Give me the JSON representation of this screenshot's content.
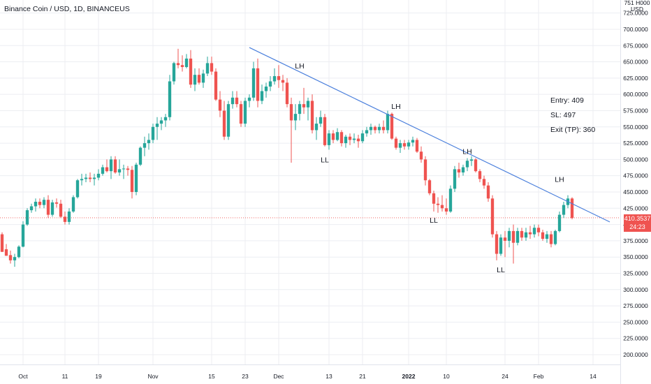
{
  "title": "Binance Coin / USD, 1D, BINANCEUS",
  "price_label": "410.3537",
  "countdown": "24:23",
  "axis_top_clipped": "751 H000",
  "axis_unit": "USD",
  "colors": {
    "up": "#26a69a",
    "down": "#ef5350",
    "trendline": "#4a7fdc",
    "grid": "#eceef2",
    "text": "#131722",
    "price_line": "#ef5350"
  },
  "annotations": [
    {
      "text": "LH",
      "date": "2021-12-06",
      "price": 644
    },
    {
      "text": "LL",
      "date": "2021-12-12",
      "price": 500
    },
    {
      "text": "LH",
      "date": "2021-12-29",
      "price": 582
    },
    {
      "text": "LL",
      "date": "2022-01-07",
      "price": 407
    },
    {
      "text": "LH",
      "date": "2022-01-15",
      "price": 513
    },
    {
      "text": "LL",
      "date": "2022-01-23",
      "price": 331
    },
    {
      "text": "LH",
      "date": "2022-02-06",
      "price": 470
    }
  ],
  "trade_notes": [
    "Entry: 409",
    "SL: 497",
    "Exit (TP): 360"
  ],
  "chart_data": {
    "type": "candlestick",
    "title": "Binance Coin / USD, 1D, BINANCEUS",
    "x_ticks": [
      {
        "label": "Oct",
        "date": "2021-10-01"
      },
      {
        "label": "11",
        "date": "2021-10-11"
      },
      {
        "label": "19",
        "date": "2021-10-19"
      },
      {
        "label": "Nov",
        "date": "2021-11-01"
      },
      {
        "label": "15",
        "date": "2021-11-15"
      },
      {
        "label": "23",
        "date": "2021-11-23"
      },
      {
        "label": "Dec",
        "date": "2021-12-01"
      },
      {
        "label": "13",
        "date": "2021-12-13"
      },
      {
        "label": "21",
        "date": "2021-12-21"
      },
      {
        "label": "2022",
        "date": "2022-01-01"
      },
      {
        "label": "10",
        "date": "2022-01-10"
      },
      {
        "label": "24",
        "date": "2022-01-24"
      },
      {
        "label": "Feb",
        "date": "2022-02-01"
      },
      {
        "label": "14",
        "date": "2022-02-14"
      }
    ],
    "y_ticks": [
      "725.0000",
      "700.0000",
      "675.0000",
      "650.0000",
      "625.0000",
      "600.0000",
      "575.0000",
      "550.0000",
      "525.0000",
      "500.0000",
      "475.0000",
      "450.0000",
      "425.0000",
      "400.0000",
      "375.0000",
      "350.0000",
      "325.0000",
      "300.0000",
      "275.0000",
      "250.0000",
      "225.0000",
      "200.0000"
    ],
    "ylim": [
      185,
      745
    ],
    "xlim": [
      "2021-09-26",
      "2022-02-20"
    ],
    "grid": true,
    "current_price": 410.35,
    "trendline": {
      "start": {
        "date": "2021-11-24",
        "price": 672
      },
      "end": {
        "date": "2022-02-18",
        "price": 404
      }
    },
    "candles": [
      [
        "2021-09-26",
        385,
        388,
        358,
        358
      ],
      [
        "2021-09-27",
        362,
        370,
        352,
        352
      ],
      [
        "2021-09-28",
        353,
        360,
        340,
        345
      ],
      [
        "2021-09-29",
        345,
        355,
        335,
        350
      ],
      [
        "2021-09-30",
        350,
        368,
        348,
        366
      ],
      [
        "2021-10-01",
        366,
        405,
        365,
        400
      ],
      [
        "2021-10-02",
        400,
        425,
        398,
        422
      ],
      [
        "2021-10-03",
        422,
        432,
        418,
        428
      ],
      [
        "2021-10-04",
        428,
        440,
        420,
        435
      ],
      [
        "2021-10-05",
        435,
        440,
        425,
        430
      ],
      [
        "2021-10-06",
        430,
        442,
        425,
        438
      ],
      [
        "2021-10-07",
        438,
        445,
        410,
        415
      ],
      [
        "2021-10-08",
        415,
        438,
        412,
        434
      ],
      [
        "2021-10-09",
        434,
        440,
        426,
        432
      ],
      [
        "2021-10-10",
        432,
        438,
        410,
        412
      ],
      [
        "2021-10-11",
        412,
        420,
        400,
        404
      ],
      [
        "2021-10-12",
        404,
        425,
        400,
        420
      ],
      [
        "2021-10-13",
        420,
        445,
        418,
        442
      ],
      [
        "2021-10-14",
        442,
        470,
        440,
        468
      ],
      [
        "2021-10-15",
        468,
        478,
        460,
        470
      ],
      [
        "2021-10-16",
        470,
        478,
        465,
        472
      ],
      [
        "2021-10-17",
        472,
        480,
        465,
        470
      ],
      [
        "2021-10-18",
        470,
        478,
        460,
        472
      ],
      [
        "2021-10-19",
        472,
        485,
        468,
        478
      ],
      [
        "2021-10-20",
        478,
        492,
        475,
        488
      ],
      [
        "2021-10-21",
        488,
        500,
        480,
        482
      ],
      [
        "2021-10-22",
        482,
        505,
        470,
        500
      ],
      [
        "2021-10-23",
        500,
        505,
        478,
        480
      ],
      [
        "2021-10-24",
        480,
        500,
        475,
        485
      ],
      [
        "2021-10-25",
        485,
        492,
        470,
        486
      ],
      [
        "2021-10-26",
        486,
        490,
        475,
        484
      ],
      [
        "2021-10-27",
        484,
        490,
        440,
        450
      ],
      [
        "2021-10-28",
        450,
        495,
        445,
        492
      ],
      [
        "2021-10-29",
        492,
        520,
        490,
        518
      ],
      [
        "2021-10-30",
        518,
        535,
        505,
        525
      ],
      [
        "2021-10-31",
        525,
        540,
        515,
        530
      ],
      [
        "2021-11-01",
        530,
        555,
        525,
        550
      ],
      [
        "2021-11-02",
        550,
        565,
        530,
        555
      ],
      [
        "2021-11-03",
        555,
        565,
        545,
        560
      ],
      [
        "2021-11-04",
        560,
        570,
        550,
        565
      ],
      [
        "2021-11-05",
        565,
        630,
        560,
        620
      ],
      [
        "2021-11-06",
        620,
        650,
        615,
        648
      ],
      [
        "2021-11-07",
        648,
        670,
        640,
        645
      ],
      [
        "2021-11-08",
        645,
        660,
        635,
        642
      ],
      [
        "2021-11-09",
        642,
        662,
        640,
        655
      ],
      [
        "2021-11-10",
        655,
        668,
        610,
        615
      ],
      [
        "2021-11-11",
        615,
        640,
        605,
        630
      ],
      [
        "2021-11-12",
        630,
        640,
        615,
        618
      ],
      [
        "2021-11-13",
        618,
        638,
        610,
        632
      ],
      [
        "2021-11-14",
        632,
        658,
        628,
        648
      ],
      [
        "2021-11-15",
        648,
        658,
        630,
        635
      ],
      [
        "2021-11-16",
        635,
        640,
        590,
        592
      ],
      [
        "2021-11-17",
        592,
        605,
        565,
        575
      ],
      [
        "2021-11-18",
        575,
        590,
        530,
        535
      ],
      [
        "2021-11-19",
        535,
        590,
        530,
        585
      ],
      [
        "2021-11-20",
        585,
        605,
        578,
        595
      ],
      [
        "2021-11-21",
        595,
        605,
        580,
        585
      ],
      [
        "2021-11-22",
        585,
        590,
        550,
        555
      ],
      [
        "2021-11-23",
        555,
        595,
        550,
        590
      ],
      [
        "2021-11-24",
        590,
        600,
        580,
        595
      ],
      [
        "2021-11-25",
        595,
        650,
        590,
        640
      ],
      [
        "2021-11-26",
        640,
        655,
        580,
        590
      ],
      [
        "2021-11-27",
        590,
        615,
        585,
        605
      ],
      [
        "2021-11-28",
        605,
        618,
        595,
        612
      ],
      [
        "2021-11-29",
        612,
        628,
        605,
        620
      ],
      [
        "2021-11-30",
        620,
        640,
        615,
        628
      ],
      [
        "2021-12-01",
        628,
        645,
        610,
        622
      ],
      [
        "2021-12-02",
        622,
        630,
        605,
        618
      ],
      [
        "2021-12-03",
        618,
        625,
        580,
        585
      ],
      [
        "2021-12-04",
        585,
        595,
        495,
        560
      ],
      [
        "2021-12-05",
        560,
        585,
        545,
        570
      ],
      [
        "2021-12-06",
        570,
        590,
        560,
        585
      ],
      [
        "2021-12-07",
        585,
        610,
        570,
        580
      ],
      [
        "2021-12-08",
        580,
        595,
        560,
        590
      ],
      [
        "2021-12-09",
        590,
        600,
        540,
        545
      ],
      [
        "2021-12-10",
        545,
        565,
        530,
        555
      ],
      [
        "2021-12-11",
        555,
        575,
        550,
        565
      ],
      [
        "2021-12-12",
        565,
        570,
        520,
        522
      ],
      [
        "2021-12-13",
        522,
        545,
        515,
        540
      ],
      [
        "2021-12-14",
        540,
        545,
        525,
        530
      ],
      [
        "2021-12-15",
        530,
        548,
        528,
        542
      ],
      [
        "2021-12-16",
        542,
        545,
        520,
        525
      ],
      [
        "2021-12-17",
        525,
        538,
        518,
        535
      ],
      [
        "2021-12-18",
        535,
        540,
        522,
        530
      ],
      [
        "2021-12-19",
        530,
        540,
        525,
        532
      ],
      [
        "2021-12-20",
        532,
        538,
        518,
        528
      ],
      [
        "2021-12-21",
        528,
        545,
        525,
        540
      ],
      [
        "2021-12-22",
        540,
        550,
        535,
        545
      ],
      [
        "2021-12-23",
        545,
        555,
        538,
        550
      ],
      [
        "2021-12-24",
        550,
        552,
        540,
        545
      ],
      [
        "2021-12-25",
        545,
        555,
        540,
        550
      ],
      [
        "2021-12-26",
        550,
        560,
        540,
        545
      ],
      [
        "2021-12-27",
        545,
        575,
        540,
        570
      ],
      [
        "2021-12-28",
        570,
        572,
        530,
        532
      ],
      [
        "2021-12-29",
        532,
        535,
        515,
        518
      ],
      [
        "2021-12-30",
        518,
        530,
        510,
        525
      ],
      [
        "2021-12-31",
        525,
        530,
        515,
        520
      ],
      [
        "2022-01-01",
        520,
        530,
        515,
        526
      ],
      [
        "2022-01-02",
        526,
        535,
        520,
        530
      ],
      [
        "2022-01-03",
        530,
        533,
        510,
        512
      ],
      [
        "2022-01-04",
        512,
        520,
        495,
        500
      ],
      [
        "2022-01-05",
        500,
        505,
        460,
        468
      ],
      [
        "2022-01-06",
        468,
        470,
        445,
        448
      ],
      [
        "2022-01-07",
        448,
        452,
        420,
        432
      ],
      [
        "2022-01-08",
        432,
        442,
        418,
        430
      ],
      [
        "2022-01-09",
        430,
        445,
        420,
        425
      ],
      [
        "2022-01-10",
        425,
        440,
        415,
        420
      ],
      [
        "2022-01-11",
        420,
        460,
        418,
        455
      ],
      [
        "2022-01-12",
        455,
        490,
        450,
        485
      ],
      [
        "2022-01-13",
        485,
        495,
        472,
        480
      ],
      [
        "2022-01-14",
        480,
        492,
        475,
        488
      ],
      [
        "2022-01-15",
        488,
        502,
        482,
        498
      ],
      [
        "2022-01-16",
        498,
        505,
        490,
        500
      ],
      [
        "2022-01-17",
        500,
        502,
        480,
        482
      ],
      [
        "2022-01-18",
        482,
        485,
        465,
        470
      ],
      [
        "2022-01-19",
        470,
        475,
        455,
        460
      ],
      [
        "2022-01-20",
        460,
        465,
        435,
        440
      ],
      [
        "2022-01-21",
        440,
        445,
        380,
        385
      ],
      [
        "2022-01-22",
        385,
        390,
        345,
        355
      ],
      [
        "2022-01-23",
        355,
        385,
        352,
        380
      ],
      [
        "2022-01-24",
        380,
        390,
        350,
        375
      ],
      [
        "2022-01-25",
        375,
        395,
        365,
        390
      ],
      [
        "2022-01-26",
        390,
        400,
        340,
        372
      ],
      [
        "2022-01-27",
        372,
        395,
        368,
        390
      ],
      [
        "2022-01-28",
        390,
        395,
        375,
        380
      ],
      [
        "2022-01-29",
        380,
        395,
        375,
        388
      ],
      [
        "2022-01-30",
        388,
        398,
        378,
        385
      ],
      [
        "2022-01-31",
        385,
        400,
        380,
        395
      ],
      [
        "2022-02-01",
        395,
        400,
        382,
        388
      ],
      [
        "2022-02-02",
        388,
        392,
        375,
        378
      ],
      [
        "2022-02-03",
        378,
        390,
        372,
        385
      ],
      [
        "2022-02-04",
        385,
        390,
        365,
        370
      ],
      [
        "2022-02-05",
        370,
        392,
        368,
        390
      ],
      [
        "2022-02-06",
        390,
        420,
        388,
        415
      ],
      [
        "2022-02-07",
        415,
        435,
        410,
        430
      ],
      [
        "2022-02-08",
        430,
        445,
        425,
        440
      ],
      [
        "2022-02-09",
        440,
        442,
        408,
        410
      ]
    ]
  }
}
